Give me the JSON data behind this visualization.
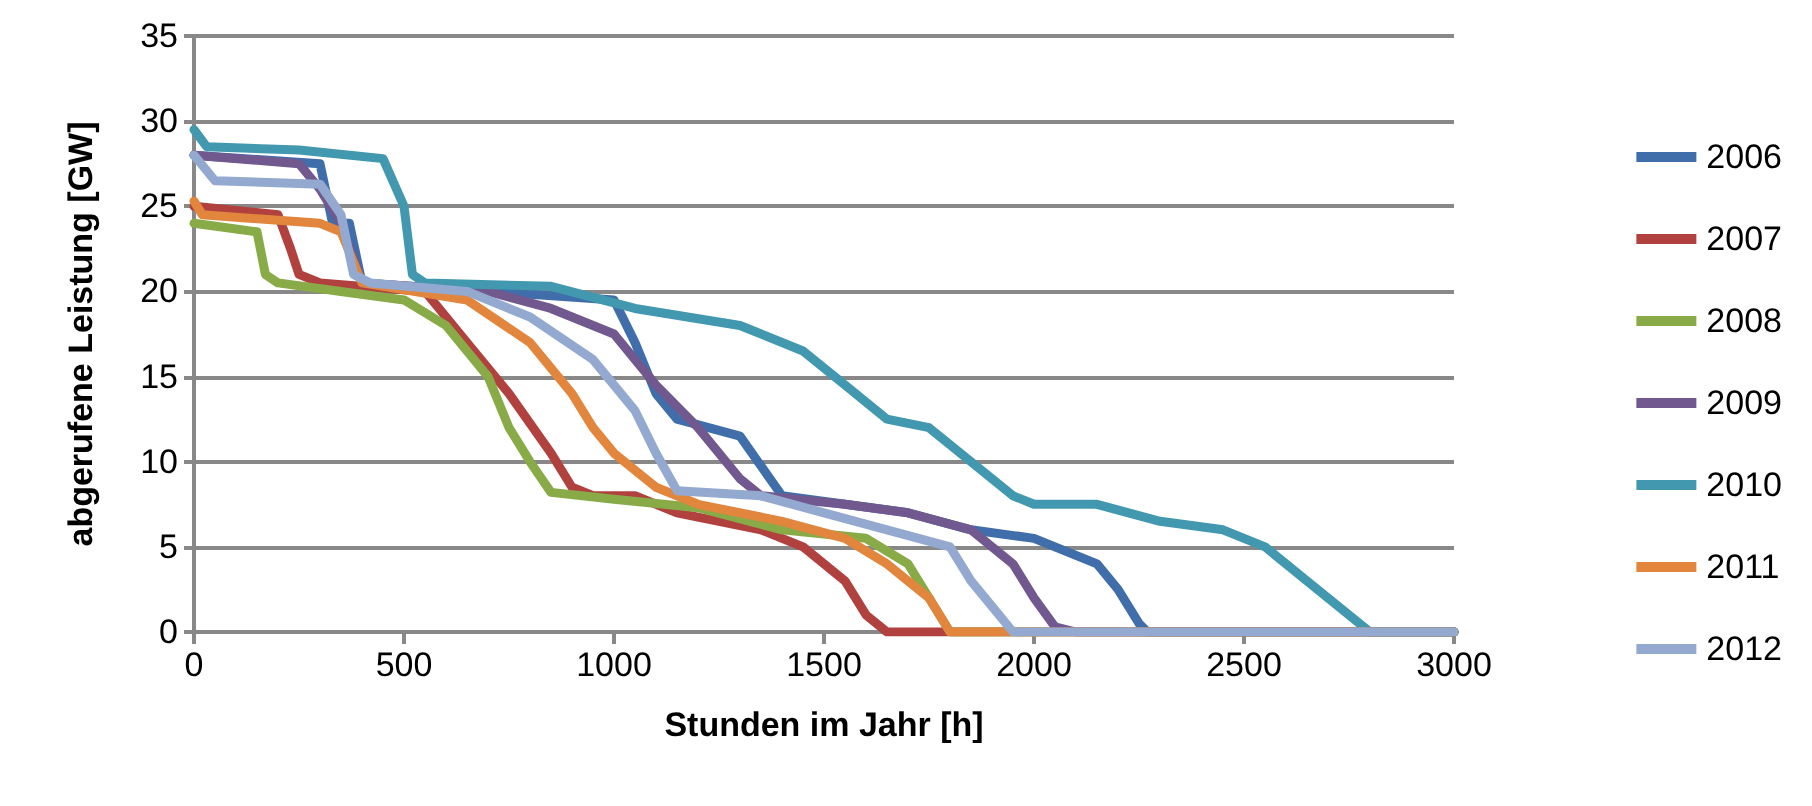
{
  "chart_data": {
    "type": "line",
    "xlabel": "Stunden im Jahr [h]",
    "ylabel": "abgerufene Leistung [GW]",
    "xlim": [
      0,
      3000
    ],
    "xticks": [
      0,
      500,
      1000,
      1500,
      2000,
      2500,
      3000
    ],
    "ylim": [
      0,
      35
    ],
    "yticks": [
      0,
      5,
      10,
      15,
      20,
      25,
      30,
      35
    ],
    "grid": "y",
    "legend": "right",
    "marker": "none",
    "line_style": "solid",
    "series": [
      {
        "name": "2006",
        "color": "#3f6eaa",
        "x": [
          0,
          300,
          330,
          370,
          400,
          1000,
          1050,
          1100,
          1150,
          1300,
          1400,
          1550,
          1700,
          1850,
          2000,
          2150,
          2200,
          2250,
          2270,
          3000
        ],
        "values": [
          28,
          27.5,
          24,
          24,
          20.5,
          19.5,
          17,
          14,
          12.5,
          11.5,
          8,
          7.5,
          7,
          6,
          5.5,
          4,
          2.5,
          0.5,
          0,
          0
        ]
      },
      {
        "name": "2007",
        "color": "#b0413e",
        "x": [
          0,
          200,
          230,
          250,
          300,
          550,
          650,
          750,
          850,
          900,
          950,
          1050,
          1150,
          1350,
          1450,
          1550,
          1600,
          1650,
          3000
        ],
        "values": [
          25,
          24.5,
          22.5,
          21,
          20.5,
          20,
          17,
          14,
          10.5,
          8.5,
          8,
          8,
          7,
          6,
          5,
          3,
          1,
          0,
          0
        ]
      },
      {
        "name": "2008",
        "color": "#88ab47",
        "x": [
          0,
          150,
          170,
          200,
          350,
          500,
          600,
          700,
          750,
          800,
          850,
          1000,
          1200,
          1400,
          1600,
          1700,
          1750,
          1800,
          3000
        ],
        "values": [
          24,
          23.5,
          21,
          20.5,
          20,
          19.5,
          18,
          15,
          12,
          10,
          8.2,
          7.8,
          7.3,
          6,
          5.5,
          4,
          2,
          0,
          0
        ]
      },
      {
        "name": "2009",
        "color": "#71588f",
        "x": [
          0,
          250,
          300,
          350,
          400,
          700,
          850,
          1000,
          1100,
          1200,
          1300,
          1350,
          1550,
          1700,
          1850,
          1950,
          2000,
          2050,
          2100,
          3000
        ],
        "values": [
          28,
          27.5,
          26,
          24,
          20.5,
          20,
          19,
          17.5,
          14.5,
          12,
          9,
          8,
          7.5,
          7,
          6,
          4,
          2,
          0.3,
          0,
          0
        ]
      },
      {
        "name": "2010",
        "color": "#4198af",
        "x": [
          0,
          30,
          250,
          450,
          500,
          520,
          550,
          850,
          1050,
          1300,
          1450,
          1550,
          1650,
          1750,
          1850,
          1950,
          2000,
          2150,
          2300,
          2450,
          2550,
          2650,
          2750,
          2800,
          3000
        ],
        "values": [
          29.5,
          28.5,
          28.3,
          27.8,
          25,
          21,
          20.5,
          20.3,
          19,
          18,
          16.5,
          14.5,
          12.5,
          12,
          10,
          8,
          7.5,
          7.5,
          6.5,
          6,
          5,
          3,
          1,
          0,
          0
        ]
      },
      {
        "name": "2011",
        "color": "#e1863c",
        "x": [
          0,
          20,
          300,
          350,
          400,
          650,
          800,
          900,
          950,
          1000,
          1100,
          1200,
          1400,
          1550,
          1650,
          1750,
          1800,
          3000
        ],
        "values": [
          25.3,
          24.5,
          24,
          23.5,
          20.5,
          19.5,
          17,
          14,
          12,
          10.5,
          8.5,
          7.5,
          6.5,
          5.5,
          4,
          2,
          0,
          0
        ]
      },
      {
        "name": "2012",
        "color": "#93a9d0",
        "x": [
          0,
          50,
          300,
          350,
          380,
          420,
          650,
          800,
          950,
          1050,
          1100,
          1150,
          1350,
          1500,
          1650,
          1800,
          1850,
          1900,
          1950,
          3000
        ],
        "values": [
          28,
          26.5,
          26.3,
          24.5,
          21,
          20.5,
          20,
          18.5,
          16,
          13,
          10.5,
          8.3,
          8,
          7,
          6,
          5,
          3,
          1.5,
          0,
          0
        ]
      }
    ]
  }
}
